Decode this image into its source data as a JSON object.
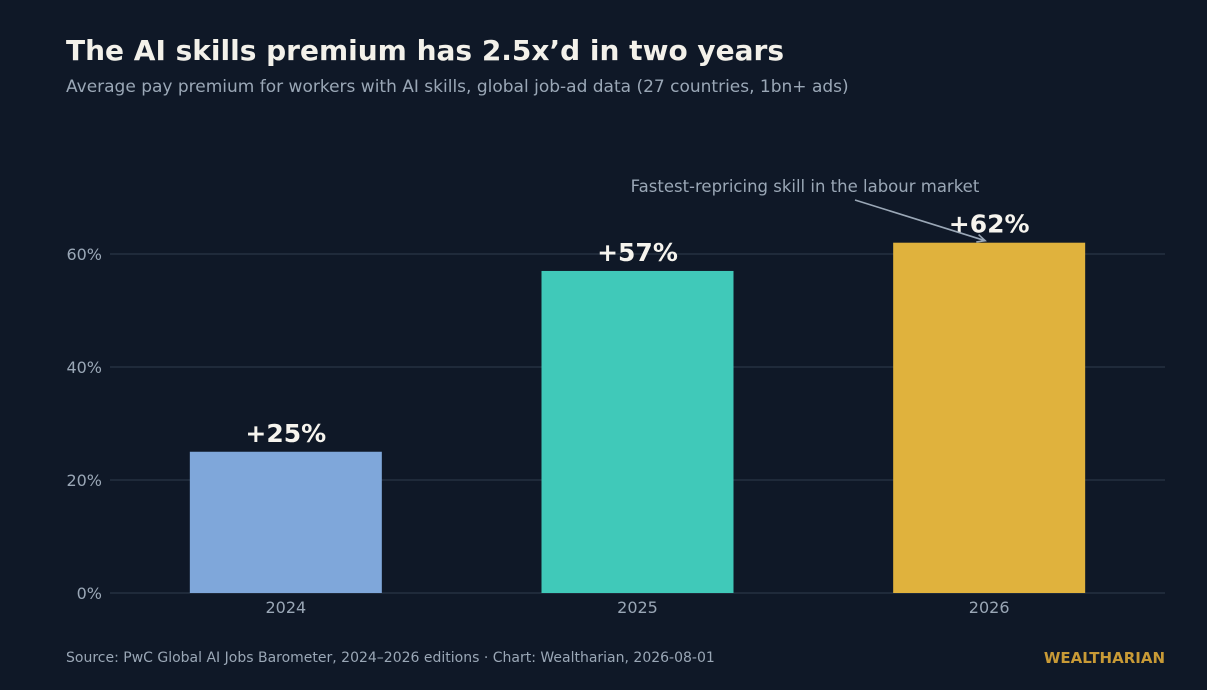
{
  "header": {
    "title": "The AI skills premium has 2.5x’d in two years",
    "subtitle": "Average pay premium for workers with AI skills, global job-ad data (27 countries, 1bn+ ads)"
  },
  "footer": {
    "source": "Source: PwC Global AI Jobs Barometer, 2024–2026 editions  ·  Chart: Wealtharian, 2026-08-01",
    "brand": "WEALTHARIAN"
  },
  "chart_data": {
    "type": "bar",
    "categories": [
      "2024",
      "2025",
      "2026"
    ],
    "values": [
      25,
      57,
      62
    ],
    "data_labels": [
      "+25%",
      "+57%",
      "+62%"
    ],
    "colors": [
      "#7fa7da",
      "#40c9b9",
      "#e0b23d"
    ],
    "ylim": [
      0,
      75
    ],
    "yticks": [
      0,
      20,
      40,
      60
    ],
    "ytick_labels": [
      "0%",
      "20%",
      "40%",
      "60%"
    ],
    "grid": true,
    "annotation": {
      "text": "Fastest-repricing skill in the labour market",
      "target_category": "2026"
    },
    "title": "The AI skills premium has 2.5x’d in two years",
    "subtitle": "Average pay premium for workers with AI skills, global job-ad data (27 countries, 1bn+ ads)"
  },
  "colors": {
    "background": "#0f1827",
    "gridline": "#1f2a3a",
    "title": "#f3f1ea",
    "muted": "#9aa7b6",
    "brand": "#c89a36"
  }
}
